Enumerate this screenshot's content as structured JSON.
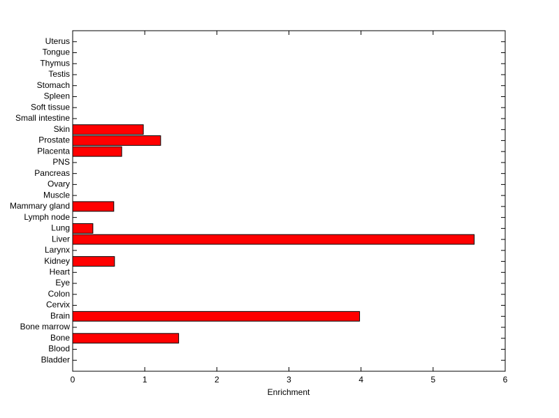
{
  "chart_data": {
    "type": "barh",
    "xlabel": "Enrichment",
    "categories": [
      "Bladder",
      "Blood",
      "Bone",
      "Bone marrow",
      "Brain",
      "Cervix",
      "Colon",
      "Eye",
      "Heart",
      "Kidney",
      "Larynx",
      "Liver",
      "Lung",
      "Lymph node",
      "Mammary gland",
      "Muscle",
      "Ovary",
      "Pancreas",
      "PNS",
      "Placenta",
      "Prostate",
      "Skin",
      "Small intestine",
      "Soft tissue",
      "Spleen",
      "Stomach",
      "Testis",
      "Thymus",
      "Tongue",
      "Uterus"
    ],
    "values": [
      0,
      0,
      1.47,
      0,
      3.98,
      0,
      0,
      0,
      0,
      0.58,
      0,
      5.57,
      0.28,
      0,
      0.57,
      0,
      0,
      0,
      0,
      0.68,
      1.22,
      0.98,
      0,
      0,
      0,
      0,
      0,
      0,
      0,
      0
    ],
    "color": "#ff0000",
    "xlim": [
      0,
      6
    ],
    "xticks": [
      0,
      1,
      2,
      3,
      4,
      5,
      6
    ]
  }
}
